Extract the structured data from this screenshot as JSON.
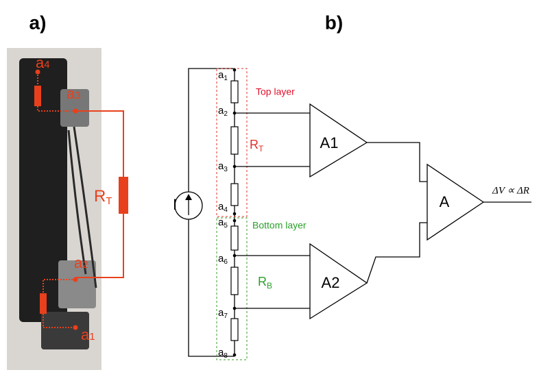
{
  "panel_a": {
    "label": "a)",
    "annotations": [
      {
        "base": "a",
        "sub": "4"
      },
      {
        "base": "a",
        "sub": "3"
      },
      {
        "base": "R",
        "sub": "T"
      },
      {
        "base": "a",
        "sub": "2"
      },
      {
        "base": "a",
        "sub": "1"
      }
    ]
  },
  "panel_b": {
    "label": "b)",
    "source": "I",
    "nodes": [
      {
        "base": "a",
        "sub": "1"
      },
      {
        "base": "a",
        "sub": "2"
      },
      {
        "base": "a",
        "sub": "3"
      },
      {
        "base": "a",
        "sub": "4"
      },
      {
        "base": "a",
        "sub": "5"
      },
      {
        "base": "a",
        "sub": "6"
      },
      {
        "base": "a",
        "sub": "7"
      },
      {
        "base": "a",
        "sub": "8"
      }
    ],
    "layers": [
      {
        "label": "Top layer",
        "resistance": {
          "base": "R",
          "sub": "T"
        }
      },
      {
        "label": "Bottom layer",
        "resistance": {
          "base": "R",
          "sub": "B"
        }
      }
    ],
    "amplifiers": [
      "A1",
      "A2",
      "A"
    ],
    "output": "ΔV ∝ ΔR"
  }
}
